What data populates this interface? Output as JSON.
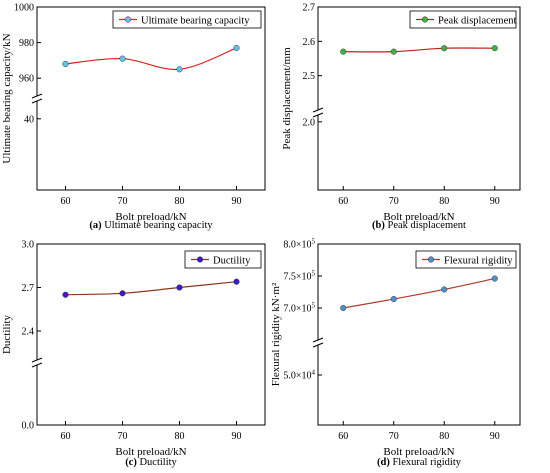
{
  "chart_data": [
    {
      "type": "line",
      "panel": "a",
      "caption_letter": "(a)",
      "caption_text": " Ultimate bearing capacity",
      "xlabel": "Bolt preload/kN",
      "ylabel": "Ultimate bearing capacity/kN",
      "x": [
        60,
        70,
        80,
        90
      ],
      "x_ticks": [
        "60",
        "70",
        "80",
        "90"
      ],
      "xlim": [
        55,
        95
      ],
      "broken_axis": true,
      "ylim_lower": [
        0,
        50
      ],
      "ylim_upper": [
        950,
        1000
      ],
      "y_ticks_lower": [
        "40"
      ],
      "y_ticks_upper": [
        "960",
        "980",
        "1000"
      ],
      "series": [
        {
          "name": "Ultimate bearing capacity",
          "values": [
            968,
            971,
            965,
            977
          ],
          "marker_color": "#5ec3f0",
          "line_color": "#e0201c"
        }
      ],
      "legend_position": "top-right",
      "grid": false
    },
    {
      "type": "line",
      "panel": "b",
      "caption_letter": "(b)",
      "caption_text": " Peak displacement",
      "xlabel": "Bolt preload/kN",
      "ylabel": "Peak displacement/mm",
      "x": [
        60,
        70,
        80,
        90
      ],
      "x_ticks": [
        "60",
        "70",
        "80",
        "90"
      ],
      "xlim": [
        55,
        95
      ],
      "broken_axis": true,
      "ylim_lower": [
        0,
        2.2
      ],
      "ylim_upper": [
        2.4,
        2.7
      ],
      "y_ticks_lower": [
        "2.0"
      ],
      "y_ticks_upper": [
        "2.5",
        "2.6",
        "2.7"
      ],
      "series": [
        {
          "name": "Peak displacement",
          "values": [
            2.57,
            2.57,
            2.58,
            2.58
          ],
          "marker_color": "#3db43d",
          "line_color": "#c0201c"
        }
      ],
      "legend_position": "top-right",
      "grid": false
    },
    {
      "type": "line",
      "panel": "c",
      "caption_letter": "(c)",
      "caption_text": " Ductility",
      "xlabel": "Bolt preload/kN",
      "ylabel": "Ductility",
      "x": [
        60,
        70,
        80,
        90
      ],
      "x_ticks": [
        "60",
        "70",
        "80",
        "90"
      ],
      "xlim": [
        55,
        95
      ],
      "broken_axis": true,
      "ylim_lower": [
        0,
        0.4
      ],
      "ylim_upper": [
        2.2,
        3.0
      ],
      "y_ticks_lower": [
        "0.0"
      ],
      "y_ticks_upper": [
        "2.4",
        "2.7",
        "3.0"
      ],
      "series": [
        {
          "name": "Ductility",
          "values": [
            2.65,
            2.66,
            2.7,
            2.74
          ],
          "marker_color": "#3a1ad0",
          "line_color": "#8b3a1a"
        }
      ],
      "legend_position": "top-right",
      "grid": false
    },
    {
      "type": "line",
      "panel": "d",
      "caption_letter": "(d)",
      "caption_text": " Flexural rigidity",
      "xlabel": "Bolt preload/kN",
      "ylabel": "Flexural rigidity kN·m²",
      "x": [
        60,
        70,
        80,
        90
      ],
      "x_ticks": [
        "60",
        "70",
        "80",
        "90"
      ],
      "xlim": [
        55,
        95
      ],
      "broken_axis": true,
      "ylim_lower": [
        0,
        80000
      ],
      "ylim_upper": [
        650000,
        800000
      ],
      "y_ticks_lower": [
        {
          "m": "5.0",
          "e": "4"
        }
      ],
      "y_ticks_upper": [
        {
          "m": "7.0",
          "e": "5"
        },
        {
          "m": "7.5",
          "e": "5"
        },
        {
          "m": "8.0",
          "e": "5"
        }
      ],
      "series": [
        {
          "name": "Flexural rigidity",
          "values": [
            700000,
            714000,
            729000,
            746000
          ],
          "marker_color": "#4f8fcf",
          "line_color": "#b03a2e"
        }
      ],
      "legend_position": "top-right",
      "grid": false
    }
  ]
}
